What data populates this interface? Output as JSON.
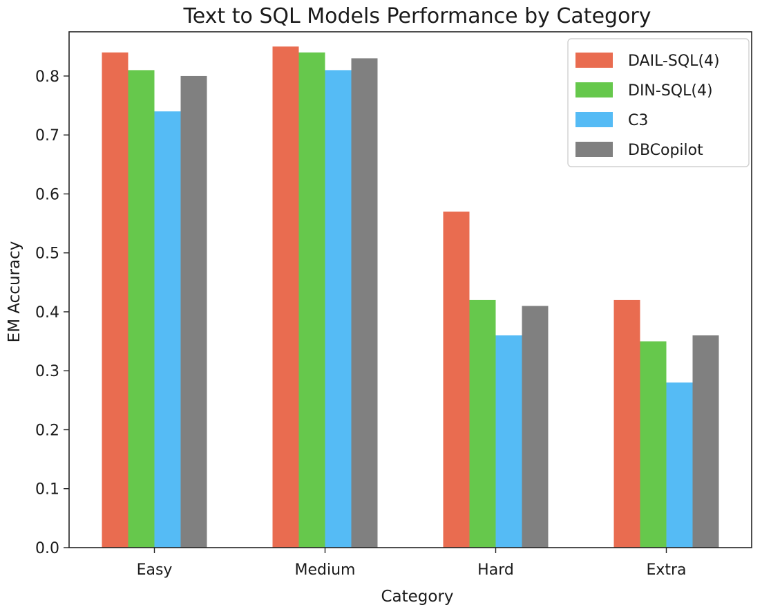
{
  "chart_data": {
    "type": "bar",
    "title": "Text to SQL Models Performance by Category",
    "xlabel": "Category",
    "ylabel": "EM Accuracy",
    "categories": [
      "Easy",
      "Medium",
      "Hard",
      "Extra"
    ],
    "ylim": [
      0,
      0.875
    ],
    "yticks": [
      0.0,
      0.1,
      0.2,
      0.3,
      0.4,
      0.5,
      0.6,
      0.7,
      0.8
    ],
    "ytick_labels": [
      "0.0",
      "0.1",
      "0.2",
      "0.3",
      "0.4",
      "0.5",
      "0.6",
      "0.7",
      "0.8"
    ],
    "grid": false,
    "legend_position": "top-right",
    "series": [
      {
        "name": "DAIL-SQL(4)",
        "color": "#e96c50",
        "values": [
          0.84,
          0.85,
          0.57,
          0.42
        ]
      },
      {
        "name": "DIN-SQL(4)",
        "color": "#66c84c",
        "values": [
          0.81,
          0.84,
          0.42,
          0.35
        ]
      },
      {
        "name": "C3",
        "color": "#55bbf5",
        "values": [
          0.74,
          0.81,
          0.36,
          0.28
        ]
      },
      {
        "name": "DBCopilot",
        "color": "#808080",
        "values": [
          0.8,
          0.83,
          0.41,
          0.36
        ]
      }
    ]
  }
}
